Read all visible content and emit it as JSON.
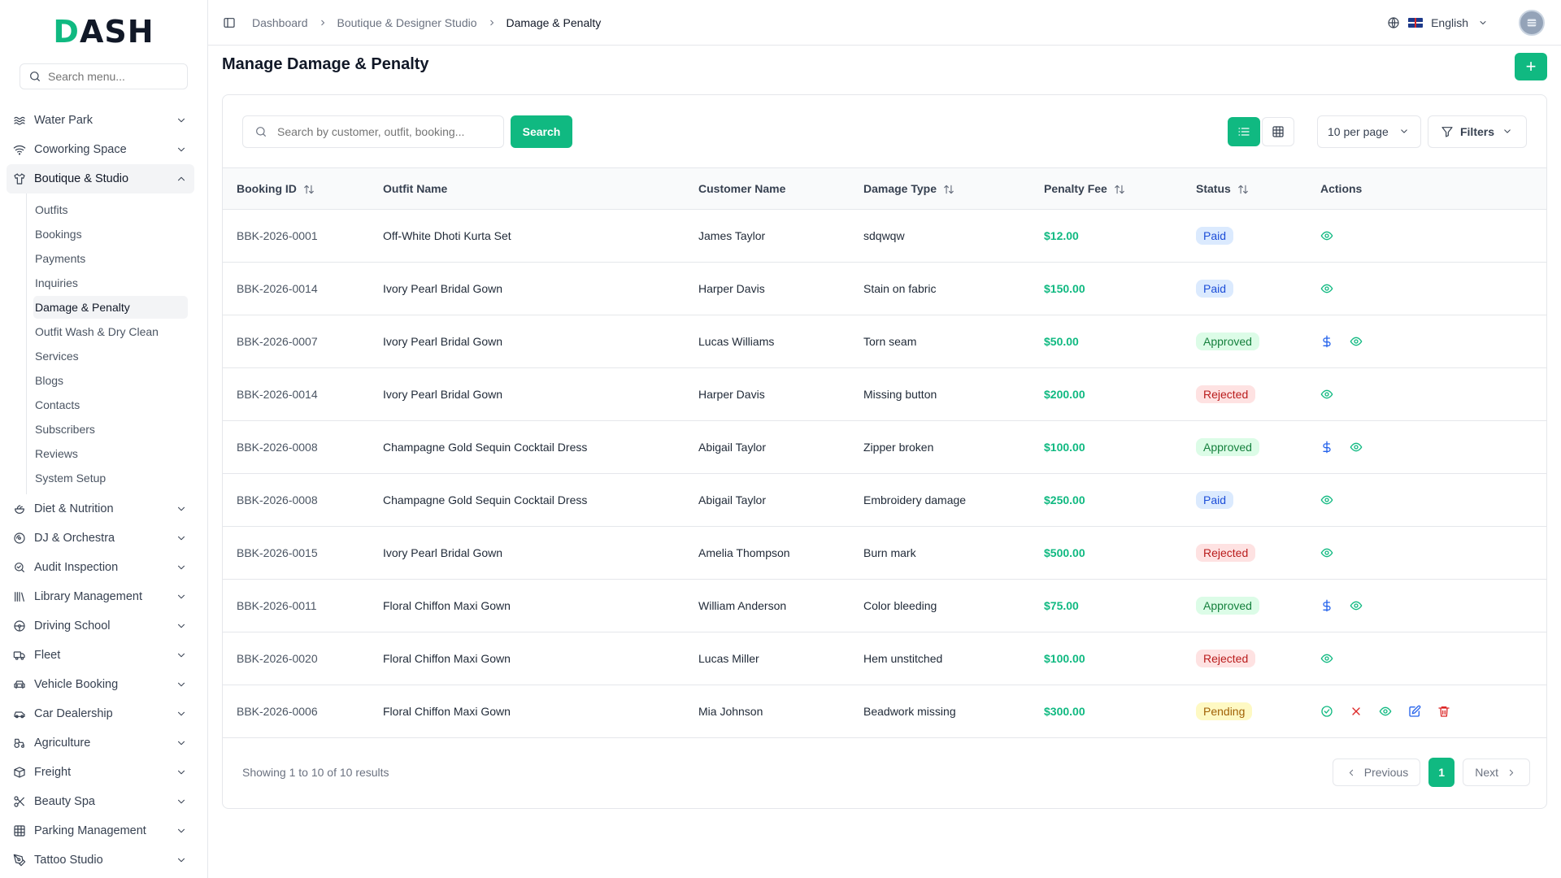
{
  "brand": {
    "logo_d": "D",
    "logo_rest": "ASH"
  },
  "sidebar": {
    "search_placeholder": "Search menu...",
    "items_top": [
      {
        "label": "Water Park",
        "icon": "waves-icon"
      },
      {
        "label": "Coworking Space",
        "icon": "wifi-icon"
      }
    ],
    "active_group": {
      "label": "Boutique & Studio",
      "icon": "shirt-icon",
      "children": [
        "Outfits",
        "Bookings",
        "Payments",
        "Inquiries",
        "Damage & Penalty",
        "Outfit Wash & Dry Clean",
        "Services",
        "Blogs",
        "Contacts",
        "Subscribers",
        "Reviews",
        "System Setup"
      ],
      "active_child": "Damage & Penalty"
    },
    "items_bottom": [
      {
        "label": "Diet & Nutrition",
        "icon": "salad-icon"
      },
      {
        "label": "DJ & Orchestra",
        "icon": "disc-icon"
      },
      {
        "label": "Audit Inspection",
        "icon": "search-check-icon"
      },
      {
        "label": "Library Management",
        "icon": "library-icon"
      },
      {
        "label": "Driving School",
        "icon": "steering-wheel-icon"
      },
      {
        "label": "Fleet",
        "icon": "truck-icon"
      },
      {
        "label": "Vehicle Booking",
        "icon": "car-front-icon"
      },
      {
        "label": "Car Dealership",
        "icon": "car-icon"
      },
      {
        "label": "Agriculture",
        "icon": "tractor-icon"
      },
      {
        "label": "Freight",
        "icon": "container-icon"
      },
      {
        "label": "Beauty Spa",
        "icon": "scissors-icon"
      },
      {
        "label": "Parking Management",
        "icon": "grid-icon"
      },
      {
        "label": "Tattoo Studio",
        "icon": "pen-tool-icon"
      }
    ]
  },
  "topbar": {
    "breadcrumbs": [
      "Dashboard",
      "Boutique & Designer Studio",
      "Damage & Penalty"
    ],
    "language": "English"
  },
  "page": {
    "title": "Manage Damage & Penalty",
    "add_label": "+"
  },
  "toolbar": {
    "search_placeholder": "Search by customer, outfit, booking...",
    "search_button": "Search",
    "per_page": "10 per page",
    "filters": "Filters"
  },
  "table": {
    "columns": [
      "Booking ID",
      "Outfit Name",
      "Customer Name",
      "Damage Type",
      "Penalty Fee",
      "Status",
      "Actions"
    ],
    "sortable": [
      true,
      false,
      false,
      true,
      true,
      true,
      false
    ],
    "rows": [
      {
        "booking_id": "BBK-2026-0001",
        "outfit": "Off-White Dhoti Kurta Set",
        "customer": "James Taylor",
        "damage": "sdqwqw",
        "fee": "$12.00",
        "status": "Paid",
        "actions": [
          "view"
        ]
      },
      {
        "booking_id": "BBK-2026-0014",
        "outfit": "Ivory Pearl Bridal Gown",
        "customer": "Harper Davis",
        "damage": "Stain on fabric",
        "fee": "$150.00",
        "status": "Paid",
        "actions": [
          "view"
        ]
      },
      {
        "booking_id": "BBK-2026-0007",
        "outfit": "Ivory Pearl Bridal Gown",
        "customer": "Lucas Williams",
        "damage": "Torn seam",
        "fee": "$50.00",
        "status": "Approved",
        "actions": [
          "pay",
          "view"
        ]
      },
      {
        "booking_id": "BBK-2026-0014",
        "outfit": "Ivory Pearl Bridal Gown",
        "customer": "Harper Davis",
        "damage": "Missing button",
        "fee": "$200.00",
        "status": "Rejected",
        "actions": [
          "view"
        ]
      },
      {
        "booking_id": "BBK-2026-0008",
        "outfit": "Champagne Gold Sequin Cocktail Dress",
        "customer": "Abigail Taylor",
        "damage": "Zipper broken",
        "fee": "$100.00",
        "status": "Approved",
        "actions": [
          "pay",
          "view"
        ]
      },
      {
        "booking_id": "BBK-2026-0008",
        "outfit": "Champagne Gold Sequin Cocktail Dress",
        "customer": "Abigail Taylor",
        "damage": "Embroidery damage",
        "fee": "$250.00",
        "status": "Paid",
        "actions": [
          "view"
        ]
      },
      {
        "booking_id": "BBK-2026-0015",
        "outfit": "Ivory Pearl Bridal Gown",
        "customer": "Amelia Thompson",
        "damage": "Burn mark",
        "fee": "$500.00",
        "status": "Rejected",
        "actions": [
          "view"
        ]
      },
      {
        "booking_id": "BBK-2026-0011",
        "outfit": "Floral Chiffon Maxi Gown",
        "customer": "William Anderson",
        "damage": "Color bleeding",
        "fee": "$75.00",
        "status": "Approved",
        "actions": [
          "pay",
          "view"
        ]
      },
      {
        "booking_id": "BBK-2026-0020",
        "outfit": "Floral Chiffon Maxi Gown",
        "customer": "Lucas Miller",
        "damage": "Hem unstitched",
        "fee": "$100.00",
        "status": "Rejected",
        "actions": [
          "view"
        ]
      },
      {
        "booking_id": "BBK-2026-0006",
        "outfit": "Floral Chiffon Maxi Gown",
        "customer": "Mia Johnson",
        "damage": "Beadwork missing",
        "fee": "$300.00",
        "status": "Pending",
        "actions": [
          "approve",
          "reject",
          "view",
          "edit",
          "delete"
        ]
      }
    ]
  },
  "pagination": {
    "summary": "Showing 1 to 10 of 10 results",
    "previous": "Previous",
    "current": "1",
    "next": "Next"
  },
  "colors": {
    "accent": "#10b981",
    "view": "#10b981",
    "pay": "#2563eb",
    "reject": "#dc2626",
    "edit": "#2563eb",
    "delete": "#dc2626"
  }
}
